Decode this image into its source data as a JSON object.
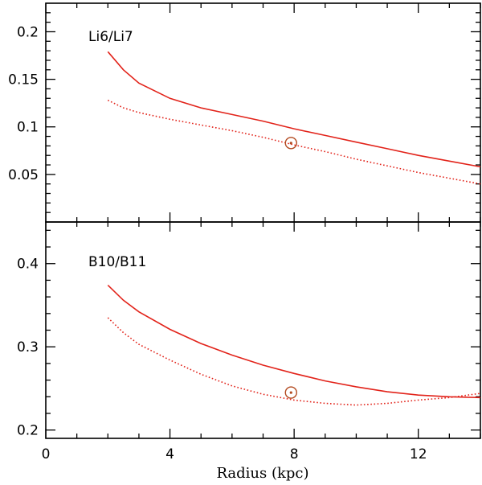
{
  "colors": {
    "series": "#e2231a",
    "sun_marker": "#b34a20",
    "axes": "#000000"
  },
  "chart_data": [
    {
      "type": "line",
      "panel": "top",
      "label": "Li6/Li7",
      "xlim": [
        0,
        14
      ],
      "ylim": [
        0,
        0.23
      ],
      "yticks": [
        0.05,
        0.1,
        0.15,
        0.2
      ],
      "ytick_labels": [
        "0.05",
        "0.1",
        "0.15",
        "0.2"
      ],
      "series": [
        {
          "style": "solid",
          "x": [
            2,
            2.5,
            3,
            4,
            5,
            6,
            7,
            8,
            9,
            10,
            11,
            12,
            13,
            14
          ],
          "y": [
            0.179,
            0.16,
            0.146,
            0.13,
            0.12,
            0.113,
            0.106,
            0.098,
            0.091,
            0.084,
            0.077,
            0.07,
            0.064,
            0.058
          ]
        },
        {
          "style": "dotted",
          "x": [
            2,
            2.5,
            3,
            4,
            5,
            6,
            7,
            8,
            9,
            10,
            11,
            12,
            13,
            14
          ],
          "y": [
            0.128,
            0.12,
            0.115,
            0.108,
            0.102,
            0.096,
            0.089,
            0.081,
            0.074,
            0.066,
            0.059,
            0.052,
            0.046,
            0.04
          ]
        }
      ],
      "sun_marker": {
        "x": 7.9,
        "y": 0.083
      }
    },
    {
      "type": "line",
      "panel": "bottom",
      "label": "B10/B11",
      "xlim": [
        0,
        14
      ],
      "ylim": [
        0.19,
        0.45
      ],
      "yticks": [
        0.2,
        0.3,
        0.4
      ],
      "ytick_labels": [
        "0.2",
        "0.3",
        "0.4"
      ],
      "series": [
        {
          "style": "solid",
          "x": [
            2,
            2.5,
            3,
            4,
            5,
            6,
            7,
            8,
            9,
            10,
            11,
            12,
            13,
            14
          ],
          "y": [
            0.374,
            0.356,
            0.342,
            0.321,
            0.304,
            0.29,
            0.278,
            0.268,
            0.259,
            0.252,
            0.246,
            0.242,
            0.24,
            0.239
          ]
        },
        {
          "style": "dotted",
          "x": [
            2,
            2.5,
            3,
            4,
            5,
            6,
            7,
            8,
            9,
            10,
            11,
            12,
            13,
            14
          ],
          "y": [
            0.335,
            0.317,
            0.303,
            0.284,
            0.267,
            0.253,
            0.243,
            0.236,
            0.232,
            0.23,
            0.232,
            0.236,
            0.239,
            0.244
          ]
        }
      ],
      "sun_marker": {
        "x": 7.9,
        "y": 0.245
      }
    }
  ],
  "x_axis": {
    "label": "Radius (kpc)",
    "ticks": [
      0,
      4,
      8,
      12
    ],
    "tick_labels": [
      "0",
      "4",
      "8",
      "12"
    ],
    "minor_step": 1
  }
}
